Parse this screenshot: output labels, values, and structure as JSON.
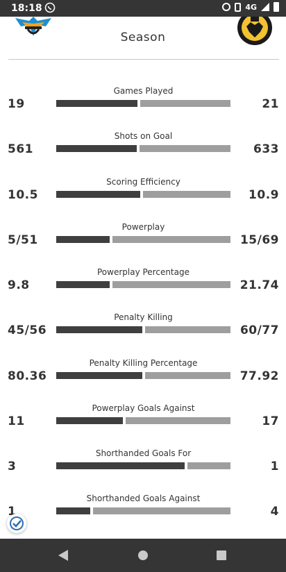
{
  "status_bar": {
    "time": "18:18",
    "network": "4G"
  },
  "header": {
    "title": "Season"
  },
  "stats": [
    {
      "label": "Games Played",
      "left": "19",
      "right": "21",
      "left_share": 0.475
    },
    {
      "label": "Shots on Goal",
      "left": "561",
      "right": "633",
      "left_share": 0.47
    },
    {
      "label": "Scoring Efficiency",
      "left": "10.5",
      "right": "10.9",
      "left_share": 0.49
    },
    {
      "label": "Powerplay",
      "left": "5/51",
      "right": "15/69",
      "left_share": 0.31
    },
    {
      "label": "Powerplay Percentage",
      "left": "9.8",
      "right": "21.74",
      "left_share": 0.31
    },
    {
      "label": "Penalty Killing",
      "left": "45/56",
      "right": "60/77",
      "left_share": 0.5
    },
    {
      "label": "Penalty Killing Percentage",
      "left": "80.36",
      "right": "77.92",
      "left_share": 0.5
    },
    {
      "label": "Powerplay Goals Against",
      "left": "11",
      "right": "17",
      "left_share": 0.39
    },
    {
      "label": "Shorthanded Goals For",
      "left": "3",
      "right": "1",
      "left_share": 0.75
    },
    {
      "label": "Shorthanded Goals Against",
      "left": "1",
      "right": "4",
      "left_share": 0.2
    }
  ],
  "colors": {
    "bar_left": "#3f3f3f",
    "bar_right": "#9e9e9e",
    "system_bar": "#353535"
  }
}
